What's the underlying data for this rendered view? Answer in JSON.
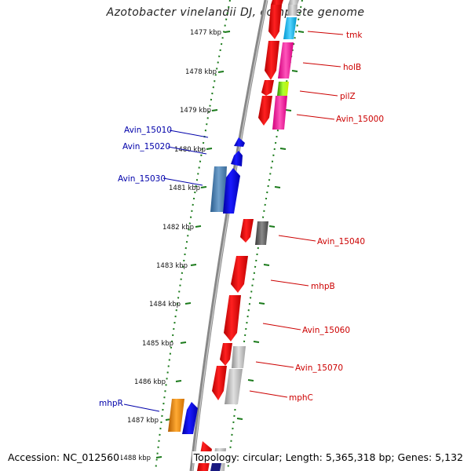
{
  "title": "Azotobacter vinelandii DJ, complete genome",
  "footer": {
    "accession": "Accession: NC_012560",
    "topology": "Topology: circular; Length: 5,365,318 bp; Genes: 5,132"
  },
  "ruler": [
    "1477 kbp",
    "1478 kbp",
    "1479 kbp",
    "1480 kbp",
    "1481 kbp",
    "1482 kbp",
    "1483 kbp",
    "1484 kbp",
    "1485 kbp",
    "1486 kbp",
    "1487 kbp",
    "1488 kbp"
  ],
  "gene_labels": [
    {
      "text": "tmk",
      "strand": "forward"
    },
    {
      "text": "holB",
      "strand": "forward"
    },
    {
      "text": "pilZ",
      "strand": "forward"
    },
    {
      "text": "Avin_15000",
      "strand": "forward"
    },
    {
      "text": "Avin_15010",
      "strand": "reverse"
    },
    {
      "text": "Avin_15020",
      "strand": "reverse"
    },
    {
      "text": "Avin_15030",
      "strand": "reverse"
    },
    {
      "text": "Avin_15040",
      "strand": "forward"
    },
    {
      "text": "mhpB",
      "strand": "forward"
    },
    {
      "text": "Avin_15060",
      "strand": "forward"
    },
    {
      "text": "Avin_15070",
      "strand": "forward"
    },
    {
      "text": "mphC",
      "strand": "forward"
    },
    {
      "text": "mhpR",
      "strand": "reverse"
    }
  ],
  "colors": {
    "forward_label": "#cc0000",
    "reverse_label": "#0000aa",
    "ruler": "#1a7a1a",
    "backbone": "#888888"
  }
}
